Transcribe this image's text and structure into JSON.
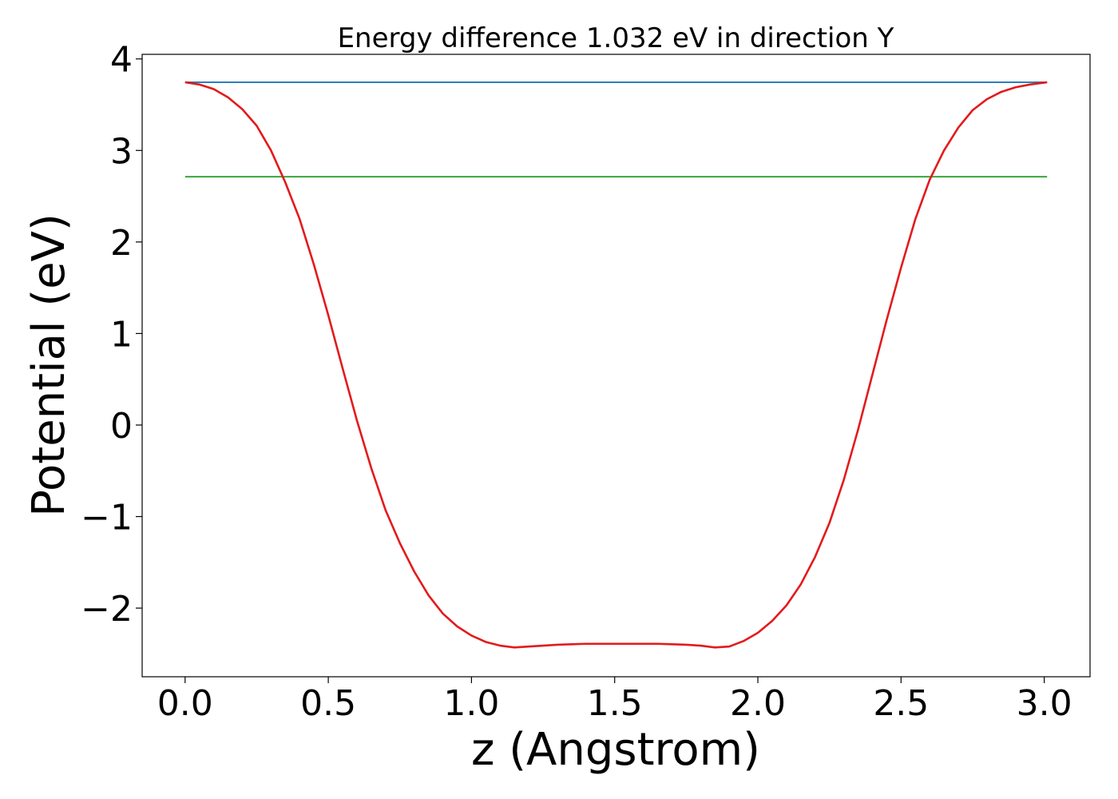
{
  "chart_data": {
    "type": "line",
    "title": "Energy difference 1.032 eV in direction Y",
    "xlabel": "z (Angstrom)",
    "ylabel": "Potential (eV)",
    "xlim": [
      -0.15,
      3.16
    ],
    "ylim": [
      -2.75,
      4.05
    ],
    "xticks": [
      0.0,
      0.5,
      1.0,
      1.5,
      2.0,
      2.5,
      3.0
    ],
    "xtick_labels": [
      "0.0",
      "0.5",
      "1.0",
      "1.5",
      "2.0",
      "2.5",
      "3.0"
    ],
    "yticks": [
      -2,
      -1,
      0,
      1,
      2,
      3,
      4
    ],
    "ytick_labels": [
      "−2",
      "−1",
      "0",
      "1",
      "2",
      "3",
      "4"
    ],
    "grid": false,
    "legend": "none",
    "series": [
      {
        "color": "#1f77b4",
        "x": [
          0.0,
          3.01
        ],
        "y": [
          3.745,
          3.745
        ]
      },
      {
        "color": "#2ca02c",
        "x": [
          0.0,
          3.01
        ],
        "y": [
          2.713,
          2.713
        ]
      },
      {
        "color": "#e31a1c",
        "x": [
          0.0,
          0.05,
          0.1,
          0.15,
          0.2,
          0.25,
          0.3,
          0.35,
          0.4,
          0.45,
          0.5,
          0.55,
          0.6,
          0.65,
          0.7,
          0.75,
          0.8,
          0.85,
          0.9,
          0.95,
          1.0,
          1.05,
          1.1,
          1.15,
          1.2,
          1.25,
          1.3,
          1.35,
          1.4,
          1.45,
          1.5,
          1.55,
          1.6,
          1.65,
          1.7,
          1.75,
          1.8,
          1.85,
          1.9,
          1.95,
          2.0,
          2.05,
          2.1,
          2.15,
          2.2,
          2.25,
          2.3,
          2.35,
          2.4,
          2.45,
          2.5,
          2.55,
          2.6,
          2.65,
          2.7,
          2.75,
          2.8,
          2.85,
          2.9,
          2.95,
          3.01
        ],
        "y": [
          3.745,
          3.72,
          3.67,
          3.58,
          3.45,
          3.27,
          3.0,
          2.65,
          2.25,
          1.75,
          1.2,
          0.62,
          0.05,
          -0.47,
          -0.93,
          -1.29,
          -1.6,
          -1.86,
          -2.06,
          -2.2,
          -2.3,
          -2.37,
          -2.41,
          -2.43,
          -2.42,
          -2.41,
          -2.4,
          -2.395,
          -2.39,
          -2.39,
          -2.39,
          -2.39,
          -2.39,
          -2.39,
          -2.395,
          -2.4,
          -2.41,
          -2.43,
          -2.42,
          -2.36,
          -2.27,
          -2.14,
          -1.97,
          -1.74,
          -1.44,
          -1.07,
          -0.6,
          -0.05,
          0.55,
          1.15,
          1.72,
          2.25,
          2.68,
          3.0,
          3.25,
          3.44,
          3.56,
          3.64,
          3.69,
          3.72,
          3.745
        ]
      }
    ]
  }
}
